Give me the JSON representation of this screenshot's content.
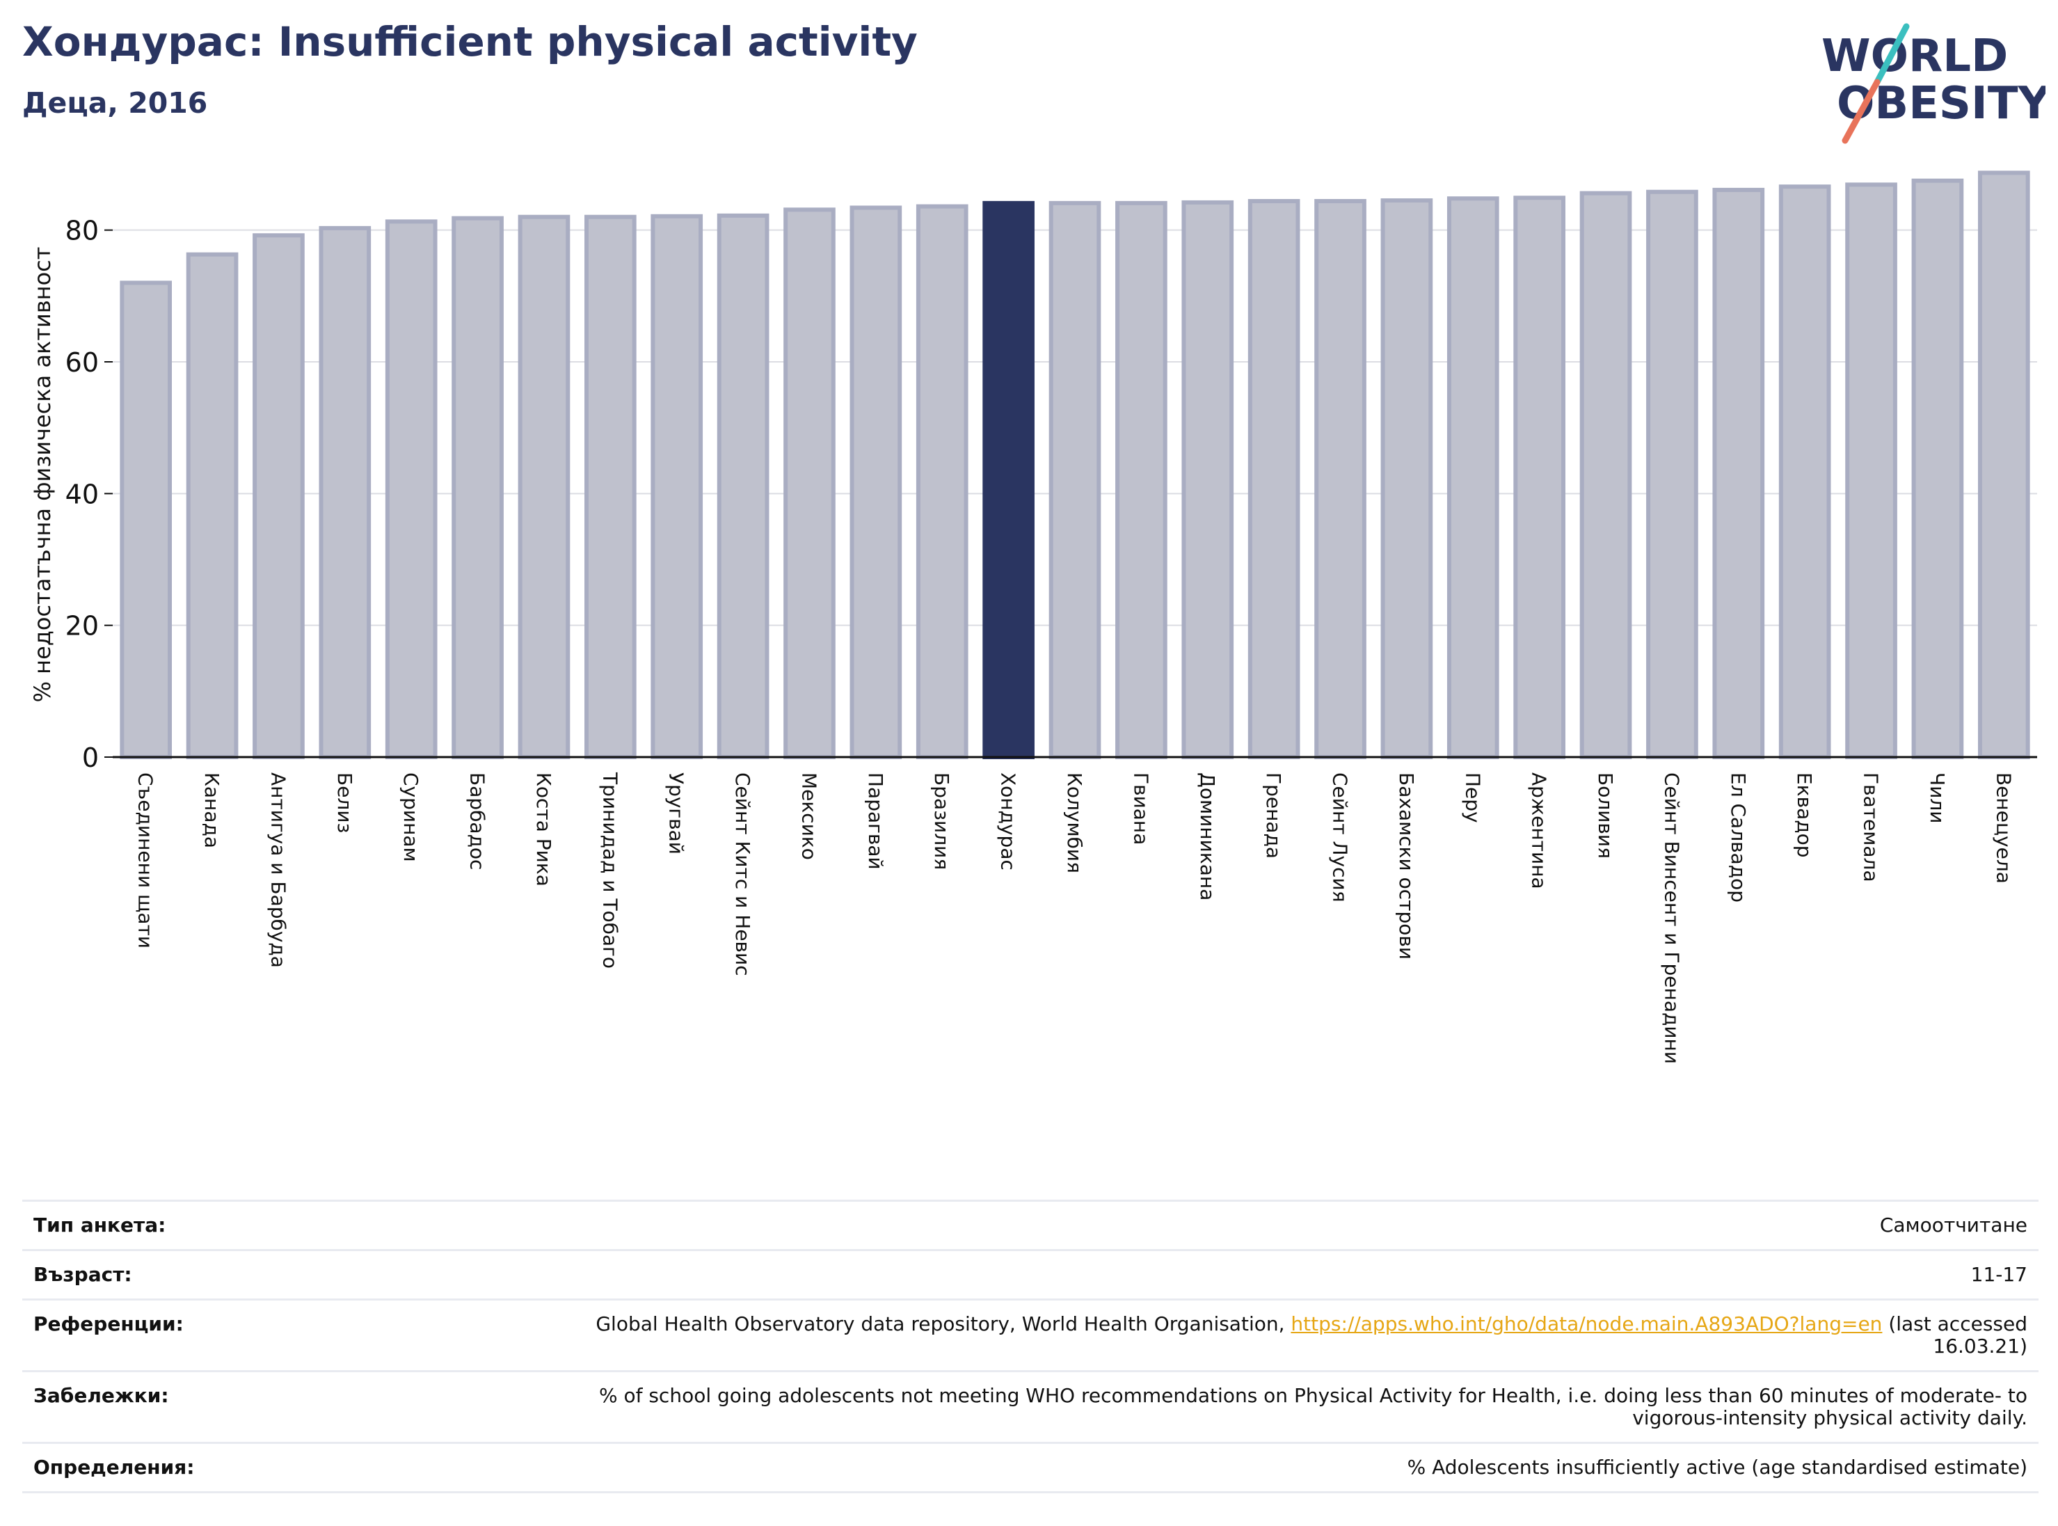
{
  "header": {
    "title": "Хондурас: Insufficient physical activity",
    "subtitle": "Деца, 2016"
  },
  "logo": {
    "line1": "WORLD",
    "line2": "OBESITY",
    "text_color": "#2a3561",
    "slash_colors": [
      "#3bbfbf",
      "#e8735a"
    ]
  },
  "colors": {
    "highlight_bar": "#2a3561",
    "bar_fill": "#bfc1cd",
    "bar_edge": "#a9adc2",
    "title": "#2a3561",
    "link": "#e6a614"
  },
  "chart_data": {
    "type": "bar",
    "title": "Хондурас: Insufficient physical activity",
    "subtitle": "Деца, 2016",
    "ylabel": "% недостатъчна физическа активност",
    "xlabel": "",
    "ylim": [
      0,
      90
    ],
    "yticks": [
      0,
      20,
      40,
      60,
      80
    ],
    "grid": true,
    "highlight": "Хондурас",
    "categories": [
      "Съединени щати",
      "Канада",
      "Антигуа и Барбуда",
      "Белиз",
      "Суринам",
      "Барбадос",
      "Коста Рика",
      "Тринидад и Тобаго",
      "Уругвай",
      "Сейнт Китс и Невис",
      "Мексико",
      "Парагвай",
      "Бразилия",
      "Хондурас",
      "Колумбия",
      "Гвиана",
      "Доминикана",
      "Гренада",
      "Сейнт Лусия",
      "Бахамски острови",
      "Перу",
      "Аржентина",
      "Боливия",
      "Сейнт Винсент и Гренадини",
      "Ел Салвадор",
      "Еквадор",
      "Гватемала",
      "Чили",
      "Венецуела"
    ],
    "values": [
      72.0,
      76.3,
      79.2,
      80.3,
      81.3,
      81.8,
      82.0,
      82.0,
      82.1,
      82.2,
      83.1,
      83.4,
      83.6,
      84.1,
      84.1,
      84.1,
      84.2,
      84.4,
      84.4,
      84.5,
      84.8,
      84.9,
      85.6,
      85.8,
      86.1,
      86.6,
      86.9,
      87.5,
      88.7
    ]
  },
  "info": {
    "rows": [
      {
        "label": "Тип анкета:",
        "value": "Самоотчитане"
      },
      {
        "label": "Възраст:",
        "value": "11-17"
      },
      {
        "label": "Референции:",
        "value_pre": "Global Health Observatory data repository, World Health Organisation, ",
        "link": "https://apps.who.int/gho/data/node.main.A893ADO?lang=en",
        "value_post": " (last accessed 16.03.21)"
      },
      {
        "label": "Забележки:",
        "value": "% of school going adolescents not meeting WHO recommendations on Physical Activity for Health, i.e. doing less than 60 minutes of moderate- to vigorous-intensity physical activity daily."
      },
      {
        "label": "Определения:",
        "value": "% Adolescents insufficiently active (age standardised estimate)"
      }
    ]
  }
}
